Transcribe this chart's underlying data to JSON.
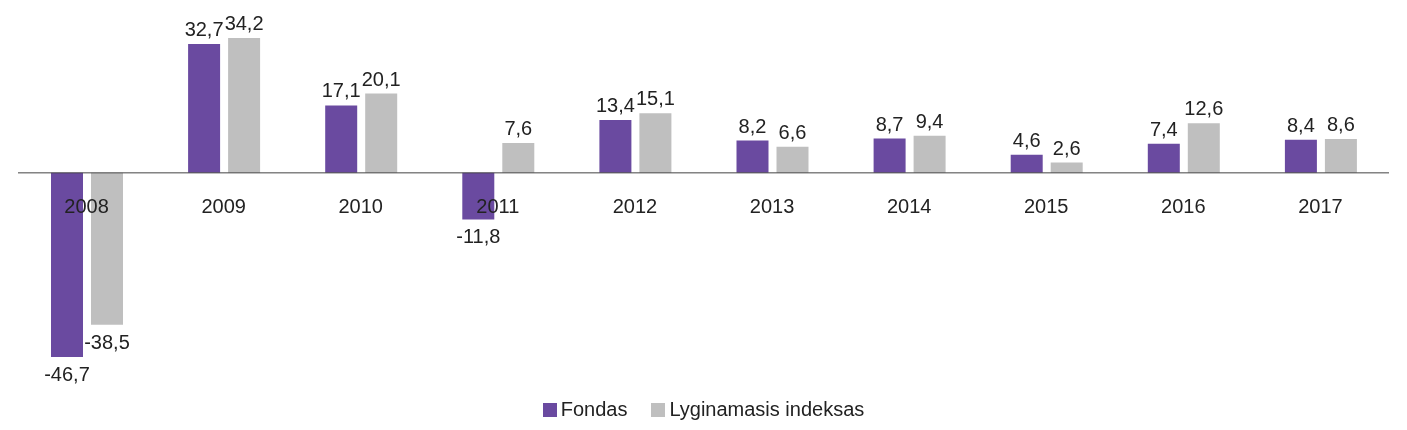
{
  "chart_data": {
    "type": "bar",
    "categories": [
      "2008",
      "2009",
      "2010",
      "2011",
      "2012",
      "2013",
      "2014",
      "2015",
      "2016",
      "2017"
    ],
    "series": [
      {
        "name": "Fondas",
        "color": "#6a4aa0",
        "values": [
          -46.7,
          32.7,
          17.1,
          -11.8,
          13.4,
          8.2,
          8.7,
          4.6,
          7.4,
          8.4
        ],
        "value_labels": [
          "-46,7",
          "32,7",
          "17,1",
          "-11,8",
          "13,4",
          "8,2",
          "8,7",
          "4,6",
          "7,4",
          "8,4"
        ]
      },
      {
        "name": "Lyginamasis indeksas",
        "color": "#bfbfbf",
        "values": [
          -38.5,
          34.2,
          20.1,
          7.6,
          15.1,
          6.6,
          9.4,
          2.6,
          12.6,
          8.6
        ],
        "value_labels": [
          "-38,5",
          "34,2",
          "20,1",
          "7,6",
          "15,1",
          "6,6",
          "9,4",
          "2,6",
          "12,6",
          "8,6"
        ]
      }
    ],
    "legend": "bottom",
    "grid": false
  }
}
